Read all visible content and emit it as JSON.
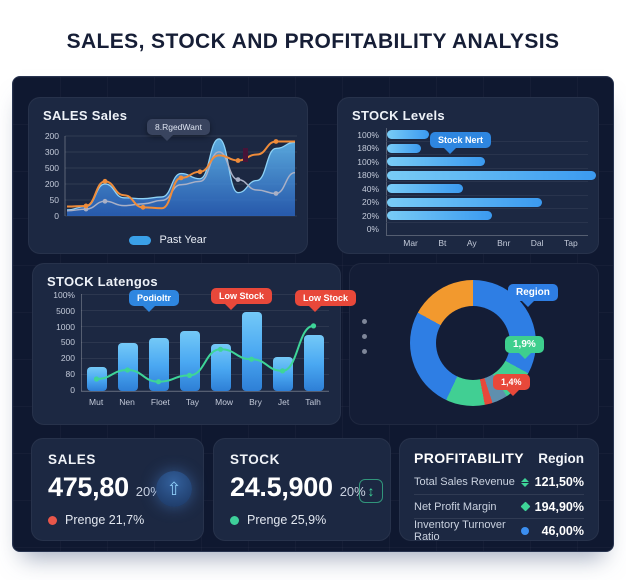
{
  "title": "SALES, STOCK AND PROFITABILITY ANALYSIS",
  "panels": {
    "sales": {
      "title": "SALES Sales",
      "tooltip": "8.RgedWant",
      "legend": "Past Year",
      "y_ticks": [
        "200",
        "300",
        "500",
        "200",
        "50",
        "0"
      ]
    },
    "stock_levels": {
      "title": "STOCK Levels",
      "tooltip": "Stock Nert",
      "y_ticks": [
        "100%",
        "180%",
        "100%",
        "180%",
        "40%",
        "20%",
        "20%",
        "0%"
      ],
      "x_ticks": [
        "Mar",
        "Bt",
        "Ay",
        "Bnr",
        "Dal",
        "Tap"
      ]
    },
    "latengos": {
      "title": "STOCK Latengos",
      "tooltip_blue": "Podioltr",
      "tooltip_red_1": "Low Stock",
      "tooltip_red_2": "Low Stock",
      "y_ticks": [
        "100%",
        "5000",
        "1000",
        "500",
        "200",
        "80",
        "0"
      ],
      "x_ticks": [
        "Mut",
        "Nen",
        "Floet",
        "Tay",
        "Mow",
        "Bry",
        "Jet",
        "Talh"
      ]
    },
    "donut": {
      "badge_region": "Region",
      "badge_green": "1,9%",
      "badge_red": "1,4%"
    },
    "kpi_sales": {
      "label": "SALES",
      "value": "475,80",
      "pct": "20%",
      "sub": "Prenge 21,7%",
      "icon_glyph": "⇧"
    },
    "kpi_stock": {
      "label": "STOCK",
      "value": "24.5,900",
      "pct": "20%",
      "sub": "Prenge 25,9%",
      "icon_glyph": "↕"
    },
    "profitability": {
      "label": "PROFITABILITY",
      "region": "Region",
      "rows": [
        {
          "name": "Total Sales Revenue",
          "value": "121,50%"
        },
        {
          "name": "Net Profit Margin",
          "value": "194,90%"
        },
        {
          "name": "Inventory Turnover Ratio",
          "value": "46,00%"
        }
      ]
    }
  },
  "colors": {
    "dashboard_bg": "#0f1830",
    "panel_bg": "#1c2842",
    "donut_panel_bg": "#141d36",
    "accent_blue": "#3b9af0",
    "accent_light_blue": "#74c9f7",
    "accent_orange": "#ef8c3a",
    "accent_green": "#3ed598",
    "accent_red": "#e8483a",
    "accent_gray_line": "#a9b0c6",
    "title_text": "#161e36"
  },
  "chart_data": [
    {
      "type": "line",
      "title": "SALES Sales",
      "x": [
        0,
        1,
        2,
        3,
        4,
        5,
        6,
        7,
        8,
        9,
        10,
        11,
        12
      ],
      "ylim": [
        0,
        450
      ],
      "y_tick_labels": [
        "200",
        "300",
        "500",
        "200",
        "50",
        "0"
      ],
      "legend_position": "bottom",
      "annotation": "8.RgedWant",
      "series": [
        {
          "name": "Past Year",
          "style": "area",
          "color": "#3f9ff0",
          "values": [
            35,
            55,
            185,
            105,
            100,
            110,
            245,
            215,
            445,
            135,
            205,
            390,
            425
          ],
          "marker_indices": []
        },
        {
          "name": "gray-line",
          "style": "line",
          "color": "#a9b0c6",
          "values": [
            30,
            40,
            85,
            60,
            70,
            90,
            180,
            200,
            370,
            210,
            150,
            130,
            250
          ],
          "marker_indices": [
            1,
            2,
            9,
            11
          ]
        },
        {
          "name": "orange-line",
          "style": "line",
          "color": "#ef8c3a",
          "values": [
            55,
            58,
            200,
            120,
            50,
            45,
            220,
            255,
            350,
            320,
            355,
            430,
            430
          ],
          "marker_indices": [
            1,
            2,
            4,
            6,
            7,
            9,
            11
          ]
        }
      ]
    },
    {
      "type": "bar",
      "orientation": "horizontal",
      "title": "STOCK Levels",
      "row_labels": [
        "100%",
        "180%",
        "100%",
        "180%",
        "40%",
        "20%",
        "20%",
        "0%"
      ],
      "bar_widths_pct": [
        21,
        17,
        49,
        104,
        38,
        77,
        52
      ],
      "x_tick_labels": [
        "Mar",
        "Bt",
        "Ay",
        "Bnr",
        "Dal",
        "Tap"
      ],
      "annotation": "Stock Nert",
      "bar_color": "#3b9af0"
    },
    {
      "type": "bar",
      "title": "STOCK Latengos",
      "categories": [
        "Mut",
        "Nen",
        "Floet",
        "Tay",
        "Mow",
        "Bry",
        "Jet",
        "Talh"
      ],
      "bar_values_pct": [
        25,
        50,
        55,
        62,
        48,
        81,
        35,
        58
      ],
      "line_series": {
        "name": "green-line",
        "color": "#3ed598",
        "values_pct": [
          10,
          20,
          7,
          14,
          43,
          32,
          19,
          69
        ]
      },
      "ylim": [
        0,
        100
      ],
      "y_tick_labels": [
        "100%",
        "5000",
        "1000",
        "500",
        "200",
        "80",
        "0"
      ],
      "annotations": [
        "Podioltr",
        "Low Stock",
        "Low Stock"
      ]
    },
    {
      "type": "pie",
      "title": "Region",
      "donut": true,
      "slices": [
        {
          "label": "blue-1",
          "value": 33,
          "color": "#2e7ee4"
        },
        {
          "label": "green-1",
          "value": 8,
          "color": "#41cf93"
        },
        {
          "label": "steel",
          "value": 4,
          "color": "#5f8fae"
        },
        {
          "label": "red",
          "value": 2,
          "color": "#e8483a"
        },
        {
          "label": "green-2",
          "value": 10,
          "color": "#41cf93"
        },
        {
          "label": "blue-2",
          "value": 26,
          "color": "#2e7ee4"
        },
        {
          "label": "orange",
          "value": 17,
          "color": "#f2992e"
        }
      ],
      "badges": [
        "Region",
        "1,9%",
        "1,4%"
      ]
    }
  ]
}
